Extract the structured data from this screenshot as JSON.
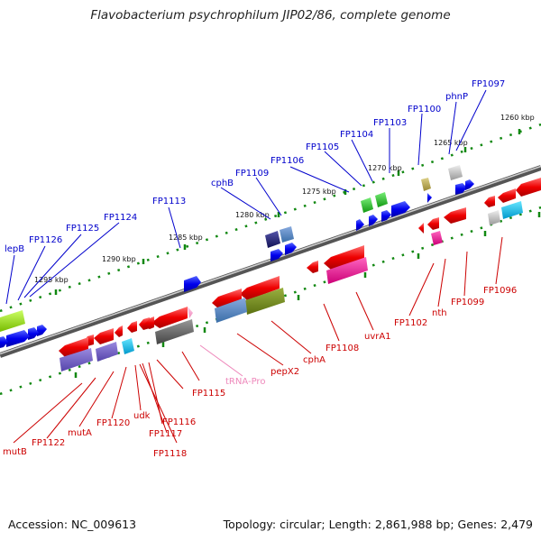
{
  "title": "Flavobacterium psychrophilum JIP02/86, complete genome",
  "footer": {
    "accession": "Accession: NC_009613",
    "topology": "Topology: circular; Length: 2,861,988 bp; Genes: 2,479"
  },
  "colors": {
    "forward_label": "#0000cc",
    "reverse_label": "#cc0000",
    "rna_label": "#ee88bb",
    "genome_line": "#888888",
    "tick": "#118811"
  },
  "kbp_ticks": [
    "1260 kbp",
    "1265 kbp",
    "1270 kbp",
    "1275 kbp",
    "1280 kbp",
    "1285 kbp",
    "1290 kbp",
    "1295 kbp"
  ],
  "forward_labels": [
    "FP1097",
    "phnP",
    "FP1100",
    "FP1103",
    "FP1104",
    "FP1105",
    "FP1106",
    "FP1109",
    "cphB",
    "FP1113",
    "FP1124",
    "FP1125",
    "FP1126",
    "lepB"
  ],
  "reverse_labels": [
    "FP1096",
    "FP1099",
    "nth",
    "FP1102",
    "uvrA1",
    "FP1108",
    "cphA",
    "pepX2",
    "tRNA-Pro",
    "FP1115",
    "FP1116",
    "FP1117",
    "FP1118",
    "udk",
    "FP1120",
    "mutA",
    "FP1122",
    "mutB"
  ]
}
